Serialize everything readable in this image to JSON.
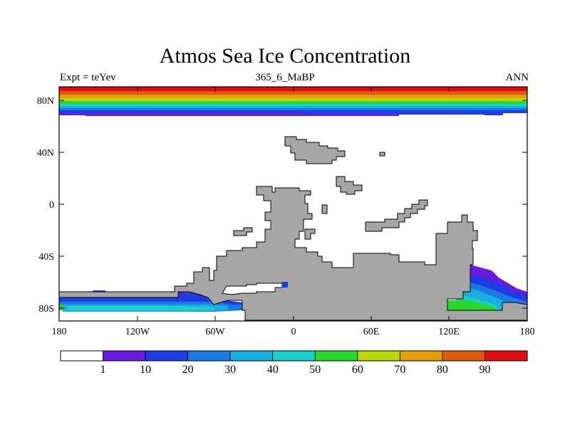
{
  "title": "Atmos Sea Ice Concentration",
  "subtitle_left": "Expt = teYev",
  "subtitle_center": "365_6_MaBP",
  "subtitle_right": "ANN",
  "y_ticks": [
    "80N",
    "40N",
    "0",
    "40S",
    "80S"
  ],
  "x_ticks": [
    "180",
    "120W",
    "60W",
    "0",
    "60E",
    "120E",
    "180"
  ],
  "colorbar": {
    "labels": [
      "1",
      "10",
      "20",
      "30",
      "40",
      "50",
      "60",
      "70",
      "80",
      "90"
    ],
    "colors": [
      "#ffffff",
      "#6a1be0",
      "#1f3be6",
      "#1c7ae4",
      "#18aee0",
      "#1ad1c8",
      "#27d82a",
      "#b8d808",
      "#e3a006",
      "#dd5a0a",
      "#e00c10"
    ]
  },
  "colors": {
    "land": "#a6a6a6",
    "outline": "#000000"
  }
}
